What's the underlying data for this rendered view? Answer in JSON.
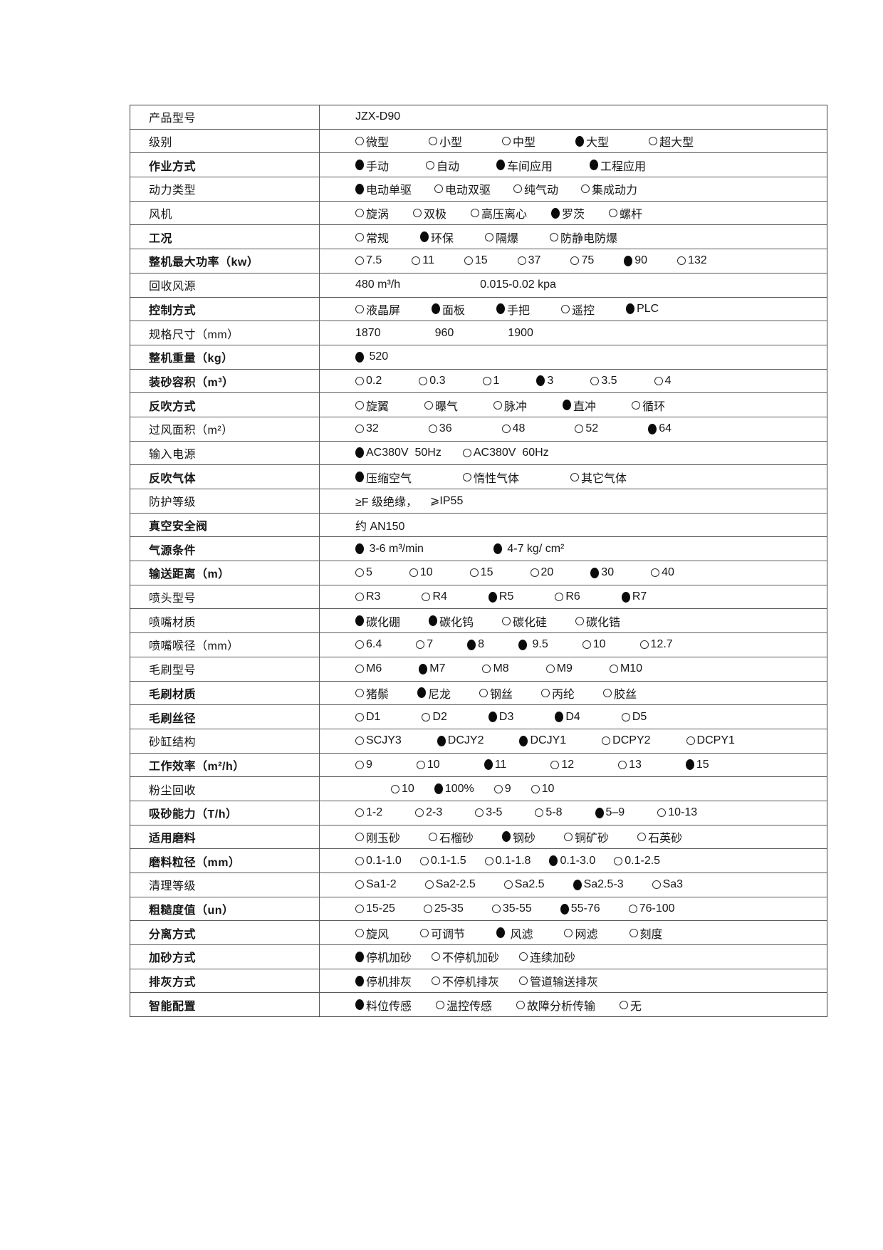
{
  "table": {
    "rows": [
      {
        "label": "产品型号",
        "bold": false,
        "segments": [
          {
            "text": "JZX-D90"
          }
        ]
      },
      {
        "label": "级别",
        "bold": false,
        "segments": [
          {
            "text": "微型",
            "sel": false
          },
          {
            "text": "小型",
            "sel": false
          },
          {
            "text": "中型",
            "sel": false
          },
          {
            "text": "大型",
            "sel": true
          },
          {
            "text": "超大型",
            "sel": false
          }
        ]
      },
      {
        "label": "作业方式",
        "bold": true,
        "segments": [
          {
            "text": "手动",
            "sel": true
          },
          {
            "text": "自动",
            "sel": false
          },
          {
            "text": "车间应用",
            "sel": true
          },
          {
            "text": "工程应用",
            "sel": true
          }
        ]
      },
      {
        "label": "动力类型",
        "bold": false,
        "segments": [
          {
            "text": "电动单驱",
            "sel": true
          },
          {
            "text": "电动双驱",
            "sel": false
          },
          {
            "text": "纯气动",
            "sel": false
          },
          {
            "text": "集成动力",
            "sel": false
          }
        ]
      },
      {
        "label": "风机",
        "bold": false,
        "segments": [
          {
            "text": "旋涡",
            "sel": false
          },
          {
            "text": "双极",
            "sel": false
          },
          {
            "text": "高压离心",
            "sel": false
          },
          {
            "text": "罗茨",
            "sel": true
          },
          {
            "text": "螺杆",
            "sel": false
          }
        ]
      },
      {
        "label": "工况",
        "bold": true,
        "segments": [
          {
            "text": "常规",
            "sel": false
          },
          {
            "text": "环保",
            "sel": true
          },
          {
            "text": "隔爆",
            "sel": false
          },
          {
            "text": "防静电防爆",
            "sel": false
          }
        ]
      },
      {
        "label": "整机最大功率（kw）",
        "bold": true,
        "segments": [
          {
            "text": "7.5",
            "sel": false
          },
          {
            "text": "11",
            "sel": false
          },
          {
            "text": "15",
            "sel": false
          },
          {
            "text": "37",
            "sel": false
          },
          {
            "text": "75",
            "sel": false
          },
          {
            "text": "90",
            "sel": true
          },
          {
            "text": "132",
            "sel": false
          }
        ]
      },
      {
        "label": "回收风源",
        "bold": false,
        "segments": [
          {
            "text": "480 m³/h"
          },
          {
            "text": "0.015-0.02 kpa"
          }
        ]
      },
      {
        "label": "控制方式",
        "bold": true,
        "segments": [
          {
            "text": "液晶屏",
            "sel": false
          },
          {
            "text": "面板",
            "sel": true
          },
          {
            "text": "手把",
            "sel": true
          },
          {
            "text": "遥控",
            "sel": false
          },
          {
            "text": "PLC",
            "sel": true
          }
        ]
      },
      {
        "label": "规格尺寸（mm）",
        "bold": false,
        "segments": [
          {
            "text": "1870"
          },
          {
            "text": "960"
          },
          {
            "text": "1900"
          }
        ]
      },
      {
        "label": "整机重量（kg）",
        "bold": true,
        "segments": [
          {
            "text": " 520",
            "sel": true
          }
        ]
      },
      {
        "label": "装砂容积（m³）",
        "bold": true,
        "segments": [
          {
            "text": "0.2",
            "sel": false
          },
          {
            "text": "0.3",
            "sel": false
          },
          {
            "text": "1",
            "sel": false
          },
          {
            "text": "3",
            "sel": true
          },
          {
            "text": "3.5",
            "sel": false
          },
          {
            "text": "4",
            "sel": false
          }
        ]
      },
      {
        "label": "反吹方式",
        "bold": true,
        "segments": [
          {
            "text": "旋翼",
            "sel": false
          },
          {
            "text": "曝气",
            "sel": false
          },
          {
            "text": "脉冲",
            "sel": false
          },
          {
            "text": "直冲",
            "sel": true
          },
          {
            "text": "循环",
            "sel": false
          }
        ]
      },
      {
        "label": "过风面积（m²）",
        "bold": false,
        "segments": [
          {
            "text": "32",
            "sel": false
          },
          {
            "text": "36",
            "sel": false
          },
          {
            "text": "48",
            "sel": false
          },
          {
            "text": "52",
            "sel": false
          },
          {
            "text": "64",
            "sel": true
          }
        ]
      },
      {
        "label": "输入电源",
        "bold": false,
        "segments": [
          {
            "text": "AC380V  50Hz",
            "sel": true
          },
          {
            "text": "AC380V  60Hz",
            "sel": false
          }
        ]
      },
      {
        "label": "反吹气体",
        "bold": true,
        "segments": [
          {
            "text": "压缩空气",
            "sel": true
          },
          {
            "text": "惰性气体",
            "sel": false
          },
          {
            "text": "其它气体",
            "sel": false
          }
        ]
      },
      {
        "label": "防护等级",
        "bold": false,
        "segments": [
          {
            "text": "≥F 级绝缘，"
          },
          {
            "text": "⩾IP55"
          }
        ]
      },
      {
        "label": "真空安全阀",
        "bold": true,
        "segments": [
          {
            "text": "约 AN150"
          }
        ]
      },
      {
        "label": "气源条件",
        "bold": true,
        "segments": [
          {
            "text": " 3-6 m³/min",
            "sel": true
          },
          {
            "text": " 4-7 kg/ cm²",
            "sel": true
          }
        ]
      },
      {
        "label": "输送距离（m）",
        "bold": true,
        "segments": [
          {
            "text": "5",
            "sel": false
          },
          {
            "text": "10",
            "sel": false
          },
          {
            "text": "15",
            "sel": false
          },
          {
            "text": "20",
            "sel": false
          },
          {
            "text": "30",
            "sel": true
          },
          {
            "text": "40",
            "sel": false
          }
        ]
      },
      {
        "label": "喷头型号",
        "bold": false,
        "segments": [
          {
            "text": "R3",
            "sel": false
          },
          {
            "text": "R4",
            "sel": false
          },
          {
            "text": "R5",
            "sel": true
          },
          {
            "text": "R6",
            "sel": false
          },
          {
            "text": "R7",
            "sel": true
          }
        ]
      },
      {
        "label": "喷嘴材质",
        "bold": false,
        "segments": [
          {
            "text": "碳化硼",
            "sel": true
          },
          {
            "text": "碳化钨",
            "sel": true
          },
          {
            "text": "碳化硅",
            "sel": false
          },
          {
            "text": "碳化锆",
            "sel": false
          }
        ]
      },
      {
        "label": "喷嘴喉径（mm）",
        "bold": false,
        "segments": [
          {
            "text": "6.4",
            "sel": false
          },
          {
            "text": "7",
            "sel": false
          },
          {
            "text": "8",
            "sel": true
          },
          {
            "text": " 9.5",
            "sel": true
          },
          {
            "text": "10",
            "sel": false
          },
          {
            "text": "12.7",
            "sel": false
          }
        ]
      },
      {
        "label": "毛刷型号",
        "bold": false,
        "segments": [
          {
            "text": "M6",
            "sel": false
          },
          {
            "text": "M7",
            "sel": true
          },
          {
            "text": "M8",
            "sel": false
          },
          {
            "text": "M9",
            "sel": false
          },
          {
            "text": "M10",
            "sel": false
          }
        ]
      },
      {
        "label": "毛刷材质",
        "bold": true,
        "segments": [
          {
            "text": "猪鬃",
            "sel": false
          },
          {
            "text": "尼龙",
            "sel": true
          },
          {
            "text": "钢丝",
            "sel": false
          },
          {
            "text": "丙纶",
            "sel": false
          },
          {
            "text": "胶丝",
            "sel": false
          }
        ]
      },
      {
        "label": "毛刷丝径",
        "bold": true,
        "segments": [
          {
            "text": "D1",
            "sel": false
          },
          {
            "text": "D2",
            "sel": false
          },
          {
            "text": "D3",
            "sel": true
          },
          {
            "text": "D4",
            "sel": true
          },
          {
            "text": "D5",
            "sel": false
          }
        ]
      },
      {
        "label": "砂缸结构",
        "bold": false,
        "segments": [
          {
            "text": "SCJY3",
            "sel": false
          },
          {
            "text": "DCJY2",
            "sel": true
          },
          {
            "text": "DCJY1",
            "sel": true
          },
          {
            "text": "DCPY2",
            "sel": false
          },
          {
            "text": "DCPY1",
            "sel": false
          }
        ]
      },
      {
        "label": "工作效率（m²/h）",
        "bold": true,
        "segments": [
          {
            "text": "9",
            "sel": false
          },
          {
            "text": "10",
            "sel": false
          },
          {
            "text": "11",
            "sel": true
          },
          {
            "text": "12",
            "sel": false
          },
          {
            "text": "13",
            "sel": false
          },
          {
            "text": "15",
            "sel": true
          }
        ]
      },
      {
        "label": "粉尘回收",
        "bold": false,
        "segments": [
          {
            "text": "10",
            "sel": false
          },
          {
            "text": "100%",
            "sel": true
          },
          {
            "text": "9",
            "sel": false
          },
          {
            "text": "10",
            "sel": false
          }
        ]
      },
      {
        "label": "吸砂能力（T/h）",
        "bold": true,
        "segments": [
          {
            "text": "1-2",
            "sel": false
          },
          {
            "text": "2-3",
            "sel": false
          },
          {
            "text": "3-5",
            "sel": false
          },
          {
            "text": "5-8",
            "sel": false
          },
          {
            "text": "5–9",
            "sel": true
          },
          {
            "text": "10-13",
            "sel": false
          }
        ]
      },
      {
        "label": "适用磨料",
        "bold": true,
        "segments": [
          {
            "text": "刚玉砂",
            "sel": false
          },
          {
            "text": "石榴砂",
            "sel": false
          },
          {
            "text": "钢砂",
            "sel": true
          },
          {
            "text": "铜矿砂",
            "sel": false
          },
          {
            "text": "石英砂",
            "sel": false
          }
        ]
      },
      {
        "label": "磨料粒径（mm）",
        "bold": true,
        "segments": [
          {
            "text": "0.1-1.0",
            "sel": false
          },
          {
            "text": "0.1-1.5",
            "sel": false
          },
          {
            "text": "0.1-1.8",
            "sel": false
          },
          {
            "text": "0.1-3.0",
            "sel": true
          },
          {
            "text": "0.1-2.5",
            "sel": false
          }
        ]
      },
      {
        "label": "清理等级",
        "bold": false,
        "segments": [
          {
            "text": "Sa1-2",
            "sel": false
          },
          {
            "text": "Sa2-2.5",
            "sel": false
          },
          {
            "text": "Sa2.5",
            "sel": false
          },
          {
            "text": "Sa2.5-3",
            "sel": true
          },
          {
            "text": "Sa3",
            "sel": false
          }
        ]
      },
      {
        "label": "粗糙度值（un）",
        "bold": true,
        "segments": [
          {
            "text": "15-25",
            "sel": false
          },
          {
            "text": "25-35",
            "sel": false
          },
          {
            "text": "35-55",
            "sel": false
          },
          {
            "text": "55-76",
            "sel": true
          },
          {
            "text": "76-100",
            "sel": false
          }
        ]
      },
      {
        "label": "分离方式",
        "bold": true,
        "segments": [
          {
            "text": "旋风",
            "sel": false
          },
          {
            "text": "可调节",
            "sel": false
          },
          {
            "text": " 风滤",
            "sel": true
          },
          {
            "text": "网滤",
            "sel": false
          },
          {
            "text": "刻度",
            "sel": false
          }
        ]
      },
      {
        "label": "加砂方式",
        "bold": true,
        "segments": [
          {
            "text": "停机加砂",
            "sel": true
          },
          {
            "text": "不停机加砂",
            "sel": false
          },
          {
            "text": "连续加砂",
            "sel": false
          }
        ]
      },
      {
        "label": "排灰方式",
        "bold": true,
        "segments": [
          {
            "text": "停机排灰",
            "sel": true
          },
          {
            "text": "不停机排灰",
            "sel": false
          },
          {
            "text": "管道输送排灰",
            "sel": false
          }
        ]
      },
      {
        "label": "智能配置",
        "bold": true,
        "segments": [
          {
            "text": "料位传感",
            "sel": true
          },
          {
            "text": "温控传感",
            "sel": false
          },
          {
            "text": "故障分析传输",
            "sel": false
          },
          {
            "text": "无",
            "sel": false
          }
        ]
      }
    ]
  }
}
